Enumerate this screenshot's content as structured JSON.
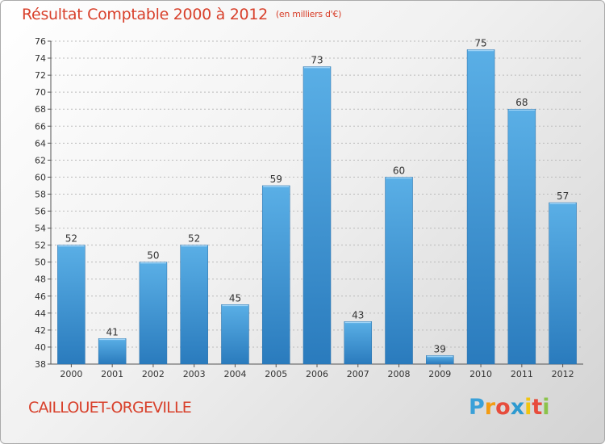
{
  "title": "Résultat Comptable 2000 à 2012",
  "subtitle": "(en milliers d'€)",
  "commune": "CAILLOUET-ORGEVILLE",
  "logo": {
    "text": "Proxiti",
    "letters": [
      "P",
      "r",
      "o",
      "x",
      "i",
      "t",
      "i"
    ],
    "colors": [
      "#3aa0d8",
      "#f39c12",
      "#e74c3c",
      "#2e9ad0",
      "#f1c40f",
      "#e74c3c",
      "#8bc34a"
    ]
  },
  "colors": {
    "title": "#d8402b",
    "bar_top": "#5aafe6",
    "bar_bottom": "#2a7bbd",
    "grid": "#bbbbbb"
  },
  "chart_data": {
    "type": "bar",
    "title": "Résultat Comptable 2000 à 2012",
    "xlabel": "",
    "ylabel": "",
    "categories": [
      "2000",
      "2001",
      "2002",
      "2003",
      "2004",
      "2005",
      "2006",
      "2007",
      "2008",
      "2009",
      "2010",
      "2011",
      "2012"
    ],
    "values": [
      52,
      41,
      50,
      52,
      45,
      59,
      73,
      43,
      60,
      39,
      75,
      68,
      57
    ],
    "ylim": [
      38,
      76
    ],
    "yticks": [
      38,
      40,
      42,
      44,
      46,
      48,
      50,
      52,
      54,
      56,
      58,
      60,
      62,
      64,
      66,
      68,
      70,
      72,
      74,
      76
    ],
    "grid": true
  }
}
